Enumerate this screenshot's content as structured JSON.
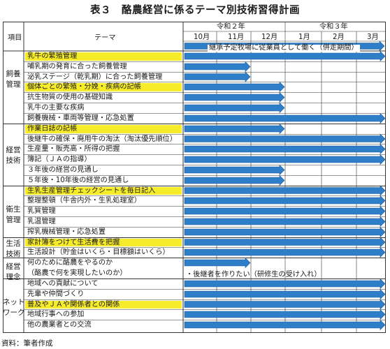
{
  "title": "表３　酪農経営に係るテーマ別技術習得計画",
  "header": {
    "item_label": "項目",
    "theme_label": "テーマ",
    "year1": "令和２年",
    "year2": "令和３年",
    "months": [
      "10月",
      "11月",
      "12月",
      "1月",
      "2月",
      "3月"
    ],
    "note": "継承予定牧場に従業員として働く（併走期間）"
  },
  "categories": [
    {
      "label": "飼養\n管理"
    },
    {
      "label": "経営\n技術"
    },
    {
      "label": "衛生\n管理"
    },
    {
      "label": "生活\n技術"
    },
    {
      "label": "経営\n理念"
    },
    {
      "label": "ネット\nワーク"
    }
  ],
  "rows": [
    {
      "text": "乳牛の繁殖管理",
      "highlight": true,
      "end_month": "3月"
    },
    {
      "text": "哺乳期の発育に合った飼養管理",
      "highlight": false,
      "end_month": "11月"
    },
    {
      "text": "泌乳ステージ（乾乳期）に合った飼養管理",
      "highlight": false,
      "end_month": "11月"
    },
    {
      "text": "個体ごとの繁殖・分娩・疾病の記帳",
      "highlight": true,
      "end_month": "12月"
    },
    {
      "text": "抗生物質の使用の基礎知識",
      "highlight": false,
      "end_month": "12月"
    },
    {
      "text": "乳牛の主要な疾病",
      "highlight": false,
      "end_month": "12月"
    },
    {
      "text": "飼養機械・車両等管理・応急処置",
      "highlight": false,
      "end_month": "3月"
    },
    {
      "text": "作業日誌の記帳",
      "highlight": true,
      "end_month": "12月"
    },
    {
      "text": "後継牛の確保・廃用牛の淘汰（淘汰優先順位）",
      "highlight": false,
      "end_month": "3月"
    },
    {
      "text": "生産量・販売高・所得の把握",
      "highlight": false,
      "end_month": "3月"
    },
    {
      "text": "簿記（ＪＡの指導）",
      "highlight": false,
      "end_month": "3月"
    },
    {
      "text": "３年後の経営の見通し",
      "highlight": false,
      "end_month": "12月"
    },
    {
      "text": "５年後・10年後の経営の見通し",
      "highlight": false,
      "end_month": "12月"
    },
    {
      "text": "生乳生産管理チェックシートを毎日記入",
      "highlight": true,
      "end_month": "3月"
    },
    {
      "text": "整理整頓（牛舎内外・生乳処理室）",
      "highlight": false,
      "end_month": "3月"
    },
    {
      "text": "乳質管理",
      "highlight": false,
      "end_month": "3月"
    },
    {
      "text": "乳温管理",
      "highlight": false,
      "end_month": "3月"
    },
    {
      "text": "搾乳機械管理・応急処置",
      "highlight": false,
      "end_month": "3月"
    },
    {
      "text": "家計簿をつけて生活費を把握",
      "highlight": true,
      "end_month": "3月"
    },
    {
      "text": "生活設計（貯金はいくら・目標額はいくら）",
      "highlight": false,
      "end_month": "3月"
    },
    {
      "text": "何のために酪農をやるのか",
      "highlight": false,
      "end_month": "11月"
    },
    {
      "text": "（酪農で何を実現したいのか）",
      "highlight": false,
      "end_month": ""
    },
    {
      "text": "地域への貢献について",
      "highlight": false,
      "end_month": "3月"
    },
    {
      "text": "先輩や仲間づくり",
      "highlight": false,
      "end_month": "3月"
    },
    {
      "text": "普及やＪＡや関係者との関係",
      "highlight": true,
      "end_month": "3月"
    },
    {
      "text": "地域行事への参加",
      "highlight": false,
      "end_month": "3月"
    },
    {
      "text": "他の農業者との交流",
      "highlight": false,
      "end_month": "3月"
    }
  ],
  "philosophy_note": "・後継者を作りたい（研修生の受け入れ）",
  "source": "資料：筆者作成",
  "colors": {
    "arrow_fill": "#2e7ec8",
    "arrow_stroke": "#1d5f9e",
    "highlight": "#f7ec2a",
    "grid": "#333333"
  }
}
